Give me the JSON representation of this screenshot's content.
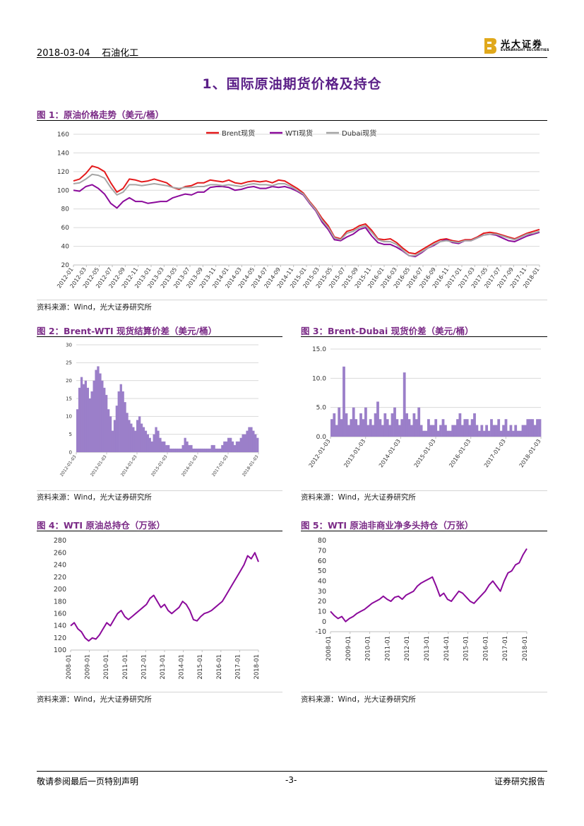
{
  "header": {
    "date": "2018-03-04",
    "category": "石油化工",
    "logo_cn": "光大证券",
    "logo_en": "EVERBRIGHT SECURITIES"
  },
  "section_title": "1、国际原油期货价格及持仓",
  "colors": {
    "brent": "#e41a1c",
    "wti": "#8b0a9b",
    "dubai": "#a6a6a6",
    "bar": "#9b7fc9",
    "title": "#7a2a86",
    "heading": "#5a1e87",
    "logo": "#e0a81b"
  },
  "figures": {
    "fig1": {
      "title": "图 1：原油价格走势（美元/桶）",
      "source": "资料来源：Wind，光大证券研究所"
    },
    "fig2": {
      "title": "图 2：Brent-WTI 现货结算价差（美元/桶）",
      "source": "资料来源：Wind，光大证券研究所"
    },
    "fig3": {
      "title": "图 3：Brent-Dubai 现货价差（美元/桶）",
      "source": "资料来源：Wind，光大证券研究所"
    },
    "fig4": {
      "title": "图 4：WTI 原油总持仓（万张）",
      "source": "资料来源：Wind，光大证券研究所"
    },
    "fig5": {
      "title": "图 5：WTI 原油非商业净多头持仓（万张）",
      "source": "资料来源：Wind，光大证券研究所"
    }
  },
  "chart_data": [
    {
      "id": "fig1",
      "type": "line",
      "ylim": [
        20,
        160
      ],
      "yticks": [
        "20",
        "40",
        "60",
        "80",
        "100",
        "120",
        "140",
        "160"
      ],
      "xticks": [
        "2012-01",
        "2012-03",
        "2012-05",
        "2012-07",
        "2012-09",
        "2012-11",
        "2013-01",
        "2013-03",
        "2013-05",
        "2013-07",
        "2013-09",
        "2013-11",
        "2014-01",
        "2014-03",
        "2014-05",
        "2014-07",
        "2014-09",
        "2014-11",
        "2015-01",
        "2015-03",
        "2015-05",
        "2015-07",
        "2015-09",
        "2015-11",
        "2016-01",
        "2016-03",
        "2016-05",
        "2016-07",
        "2016-09",
        "2016-11",
        "2017-01",
        "2017-03",
        "2017-05",
        "2017-07",
        "2017-09",
        "2017-11",
        "2018-01"
      ],
      "legend": [
        "Brent现货",
        "WTI现货",
        "Dubai现货"
      ],
      "x": [
        0,
        1,
        2,
        3,
        4,
        5,
        6,
        7,
        8,
        9,
        10,
        11,
        12,
        13,
        14,
        15,
        16,
        17,
        18,
        19,
        20,
        21,
        22,
        23,
        24,
        25,
        26,
        27,
        28,
        29,
        30,
        31,
        32,
        33,
        34,
        35,
        36,
        37,
        38,
        39,
        40,
        41,
        42,
        43,
        44,
        45,
        46,
        47,
        48,
        49,
        50,
        51,
        52,
        53,
        54,
        55,
        56,
        57,
        58,
        59,
        60,
        61,
        62,
        63,
        64,
        65,
        66,
        67,
        68,
        69,
        70,
        71,
        72,
        73,
        74,
        75
      ],
      "series": [
        {
          "name": "Brent现货",
          "values": [
            110,
            112,
            118,
            126,
            124,
            120,
            108,
            98,
            102,
            112,
            111,
            109,
            110,
            112,
            110,
            108,
            103,
            101,
            104,
            105,
            108,
            108,
            111,
            110,
            109,
            111,
            108,
            107,
            109,
            110,
            109,
            110,
            108,
            111,
            110,
            106,
            102,
            97,
            88,
            80,
            70,
            62,
            50,
            48,
            56,
            58,
            62,
            64,
            57,
            48,
            47,
            48,
            44,
            38,
            33,
            32,
            36,
            40,
            44,
            47,
            48,
            46,
            45,
            47,
            47,
            50,
            54,
            55,
            54,
            52,
            50,
            48,
            51,
            54,
            56,
            58
          ]
        },
        {
          "name": "WTI现货",
          "values": [
            100,
            99,
            104,
            106,
            102,
            96,
            86,
            81,
            88,
            92,
            88,
            88,
            86,
            87,
            88,
            88,
            92,
            94,
            96,
            95,
            98,
            98,
            103,
            104,
            104,
            103,
            100,
            101,
            103,
            104,
            102,
            102,
            104,
            103,
            104,
            102,
            99,
            95,
            86,
            78,
            66,
            58,
            47,
            46,
            50,
            53,
            58,
            60,
            51,
            44,
            42,
            42,
            39,
            35,
            30,
            29,
            33,
            38,
            41,
            45,
            47,
            44,
            43,
            46,
            46,
            49,
            52,
            53,
            52,
            49,
            46,
            45,
            48,
            51,
            53,
            55
          ]
        },
        {
          "name": "Dubai现货",
          "values": [
            107,
            108,
            112,
            117,
            116,
            113,
            103,
            95,
            98,
            106,
            106,
            105,
            106,
            107,
            106,
            105,
            103,
            102,
            103,
            103,
            104,
            104,
            106,
            106,
            105,
            106,
            105,
            104,
            106,
            107,
            106,
            106,
            105,
            107,
            107,
            104,
            100,
            96,
            87,
            79,
            68,
            60,
            49,
            47,
            54,
            56,
            60,
            62,
            55,
            47,
            45,
            45,
            42,
            36,
            30,
            30,
            34,
            38,
            42,
            45,
            46,
            45,
            44,
            46,
            46,
            49,
            52,
            53,
            53,
            51,
            49,
            47,
            50,
            53,
            54,
            56
          ]
        }
      ]
    },
    {
      "id": "fig2",
      "type": "bar",
      "ylim": [
        0,
        30
      ],
      "yticks": [
        "0",
        "5",
        "10",
        "15",
        "20",
        "25",
        "30"
      ],
      "xticks": [
        "2012-01-03",
        "2013-01-03",
        "2014-01-03",
        "2015-01-03",
        "2016-01-03",
        "2017-01-03",
        "2018-01-03"
      ],
      "values": [
        12,
        18,
        21,
        19,
        20,
        18,
        15,
        17,
        20,
        23,
        24,
        22,
        20,
        18,
        16,
        12,
        10,
        6,
        9,
        13,
        17,
        19,
        17,
        14,
        11,
        9,
        8,
        7,
        6,
        9,
        10,
        8,
        7,
        6,
        5,
        4,
        3,
        5,
        7,
        6,
        4,
        3,
        3,
        2,
        2,
        1,
        1,
        1,
        1,
        1,
        1,
        2,
        4,
        3,
        2,
        2,
        1,
        1,
        1,
        1,
        1,
        1,
        1,
        1,
        1,
        2,
        2,
        1,
        1,
        1,
        2,
        3,
        3,
        4,
        4,
        3,
        2,
        3,
        3,
        4,
        5,
        5,
        6,
        7,
        7,
        6,
        5,
        4
      ]
    },
    {
      "id": "fig3",
      "type": "bar",
      "ylim": [
        0,
        15
      ],
      "yticks": [
        "0.0",
        "5.0",
        "10.0",
        "15.0"
      ],
      "xticks": [
        "2012-01-03",
        "2013-01-03",
        "2014-01-03",
        "2015-01-03",
        "2016-01-03",
        "2017-01-03",
        "2018-01-03"
      ],
      "values": [
        3,
        4,
        2,
        5,
        3,
        12,
        4,
        2,
        3,
        5,
        3,
        2,
        4,
        3,
        5,
        2,
        3,
        2,
        4,
        6,
        3,
        2,
        4,
        3,
        2,
        4,
        5,
        3,
        2,
        3,
        11,
        4,
        3,
        2,
        4,
        3,
        5,
        2,
        1,
        1,
        3,
        2,
        2,
        3,
        1,
        2,
        3,
        2,
        1,
        1,
        2,
        2,
        3,
        4,
        2,
        3,
        3,
        2,
        3,
        4,
        2,
        1,
        2,
        1,
        2,
        1,
        3,
        2,
        2,
        3,
        1,
        2,
        3,
        1,
        2,
        1,
        2,
        1,
        1,
        2,
        2,
        3,
        3,
        3,
        2,
        3,
        3
      ]
    },
    {
      "id": "fig4",
      "type": "line",
      "ylim": [
        100,
        280
      ],
      "yticks": [
        "100",
        "120",
        "140",
        "160",
        "180",
        "200",
        "220",
        "240",
        "260",
        "280"
      ],
      "xticks": [
        "2008-01",
        "2009-01",
        "2010-01",
        "2011-01",
        "2012-01",
        "2013-01",
        "2014-01",
        "2015-01",
        "2016-01",
        "2017-01",
        "2018-01"
      ],
      "series": [
        {
          "name": "WTI原油总持仓",
          "values": [
            140,
            145,
            135,
            130,
            120,
            115,
            120,
            118,
            125,
            135,
            145,
            140,
            150,
            160,
            165,
            155,
            150,
            155,
            160,
            165,
            170,
            175,
            185,
            190,
            180,
            170,
            175,
            165,
            160,
            165,
            170,
            180,
            175,
            165,
            150,
            148,
            155,
            160,
            162,
            165,
            170,
            175,
            180,
            190,
            200,
            210,
            220,
            230,
            240,
            255,
            250,
            260,
            245
          ]
        }
      ]
    },
    {
      "id": "fig5",
      "type": "line",
      "ylim": [
        -10,
        80
      ],
      "yticks": [
        "-10",
        "0",
        "10",
        "20",
        "30",
        "40",
        "50",
        "60",
        "70",
        "80"
      ],
      "xticks": [
        "2008-01",
        "2009-01",
        "2010-01",
        "2011-01",
        "2012-01",
        "2013-01",
        "2014-01",
        "2015-01",
        "2016-01",
        "2017-01",
        "2018-01"
      ],
      "series": [
        {
          "name": "WTI原油非商业净多头持仓",
          "values": [
            10,
            6,
            3,
            5,
            0,
            3,
            5,
            8,
            10,
            12,
            15,
            18,
            20,
            22,
            25,
            22,
            20,
            24,
            25,
            22,
            26,
            28,
            30,
            35,
            38,
            40,
            42,
            44,
            35,
            25,
            28,
            22,
            20,
            25,
            30,
            28,
            24,
            20,
            18,
            22,
            26,
            30,
            36,
            40,
            35,
            30,
            40,
            48,
            50,
            56,
            58,
            66,
            72
          ]
        }
      ]
    }
  ],
  "footer": {
    "left": "敬请参阅最后一页特别声明",
    "center": "-3-",
    "right": "证券研究报告"
  }
}
